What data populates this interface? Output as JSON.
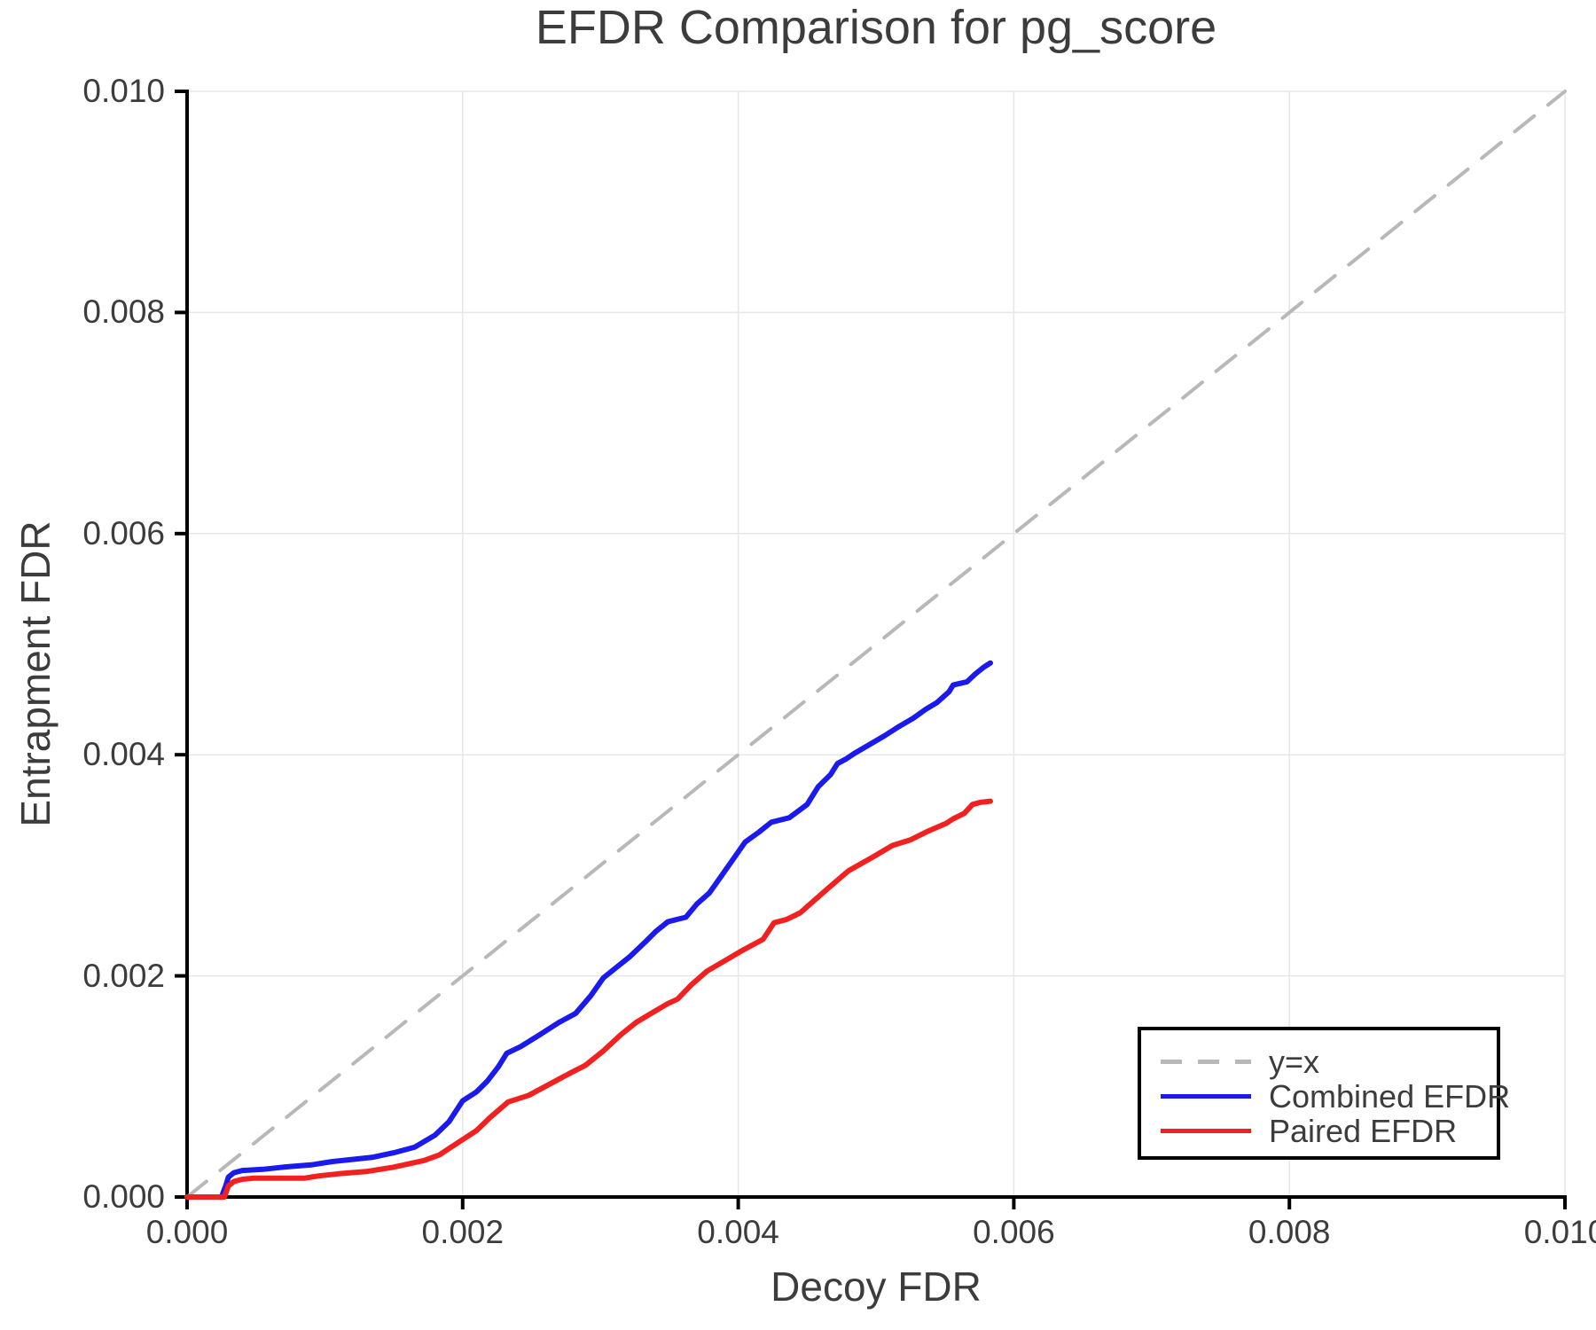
{
  "chart_data": {
    "type": "line",
    "title": "EFDR Comparison for pg_score",
    "xlabel": "Decoy FDR",
    "ylabel": "Entrapment FDR",
    "xlim": [
      0.0,
      0.01
    ],
    "ylim": [
      0.0,
      0.01
    ],
    "grid": true,
    "legend_position": "lower right",
    "x_ticks": {
      "values": [
        0.0,
        0.002,
        0.004,
        0.006,
        0.008,
        0.01
      ],
      "labels": [
        "0.000",
        "0.002",
        "0.004",
        "0.006",
        "0.008",
        "0.010"
      ]
    },
    "y_ticks": {
      "values": [
        0.0,
        0.002,
        0.004,
        0.006,
        0.008,
        0.01
      ],
      "labels": [
        "0.000",
        "0.002",
        "0.004",
        "0.006",
        "0.008",
        "0.010"
      ]
    },
    "colors": {
      "identity_line": "#b8b8b8",
      "combined_efdr": "#1a1aee",
      "paired_efdr": "#f32020",
      "grid": "#e7e7e7",
      "axis": "#000000",
      "text": "#3c3c3c"
    },
    "series": [
      {
        "name": "y=x",
        "style": "dashed",
        "color": "#b8b8b8",
        "points": [
          [
            0.0,
            0.0
          ],
          [
            0.01,
            0.01
          ]
        ]
      },
      {
        "name": "Combined EFDR",
        "style": "solid",
        "color": "#1a1aee",
        "points": [
          [
            0.0,
            0.0
          ],
          [
            0.00025,
            0.0
          ],
          [
            0.00028,
            0.0001
          ],
          [
            0.0003,
            0.00018
          ],
          [
            0.00034,
            0.00022
          ],
          [
            0.0004,
            0.00024
          ],
          [
            0.00055,
            0.00025
          ],
          [
            0.0007,
            0.00027
          ],
          [
            0.0009,
            0.00029
          ],
          [
            0.00105,
            0.00032
          ],
          [
            0.0012,
            0.00034
          ],
          [
            0.00135,
            0.00036
          ],
          [
            0.0015,
            0.0004
          ],
          [
            0.00165,
            0.00045
          ],
          [
            0.0018,
            0.00056
          ],
          [
            0.0019,
            0.00068
          ],
          [
            0.002,
            0.00087
          ],
          [
            0.0021,
            0.00095
          ],
          [
            0.00218,
            0.00105
          ],
          [
            0.00226,
            0.00118
          ],
          [
            0.00232,
            0.0013
          ],
          [
            0.00242,
            0.00136
          ],
          [
            0.00255,
            0.00146
          ],
          [
            0.0027,
            0.00158
          ],
          [
            0.00282,
            0.00166
          ],
          [
            0.00293,
            0.00182
          ],
          [
            0.00302,
            0.00198
          ],
          [
            0.0031,
            0.00206
          ],
          [
            0.00321,
            0.00217
          ],
          [
            0.00332,
            0.0023
          ],
          [
            0.0034,
            0.0024
          ],
          [
            0.00349,
            0.00249
          ],
          [
            0.00362,
            0.00253
          ],
          [
            0.0037,
            0.00265
          ],
          [
            0.00379,
            0.00275
          ],
          [
            0.00387,
            0.00289
          ],
          [
            0.00396,
            0.00305
          ],
          [
            0.00405,
            0.00321
          ],
          [
            0.00415,
            0.0033
          ],
          [
            0.00424,
            0.00339
          ],
          [
            0.00437,
            0.00343
          ],
          [
            0.0045,
            0.00355
          ],
          [
            0.00458,
            0.00371
          ],
          [
            0.00467,
            0.00382
          ],
          [
            0.00472,
            0.00392
          ],
          [
            0.00478,
            0.00396
          ],
          [
            0.00484,
            0.00401
          ],
          [
            0.00495,
            0.00409
          ],
          [
            0.00506,
            0.00417
          ],
          [
            0.00516,
            0.00425
          ],
          [
            0.00527,
            0.00433
          ],
          [
            0.00536,
            0.00441
          ],
          [
            0.00544,
            0.00447
          ],
          [
            0.00553,
            0.00457
          ],
          [
            0.00556,
            0.00463
          ],
          [
            0.00566,
            0.00466
          ],
          [
            0.00572,
            0.00473
          ],
          [
            0.00578,
            0.00479
          ],
          [
            0.00583,
            0.00483
          ]
        ]
      },
      {
        "name": "Paired EFDR",
        "style": "solid",
        "color": "#f32020",
        "points": [
          [
            0.0,
            0.0
          ],
          [
            0.00027,
            0.0
          ],
          [
            0.0003,
            0.0001
          ],
          [
            0.00034,
            0.00014
          ],
          [
            0.0004,
            0.00016
          ],
          [
            0.00048,
            0.00017
          ],
          [
            0.00085,
            0.00017
          ],
          [
            0.00095,
            0.00019
          ],
          [
            0.0011,
            0.00021
          ],
          [
            0.0013,
            0.00023
          ],
          [
            0.0015,
            0.00027
          ],
          [
            0.00172,
            0.00033
          ],
          [
            0.00183,
            0.00038
          ],
          [
            0.002,
            0.00052
          ],
          [
            0.0021,
            0.0006
          ],
          [
            0.0022,
            0.00072
          ],
          [
            0.00233,
            0.00086
          ],
          [
            0.00248,
            0.00092
          ],
          [
            0.00263,
            0.00102
          ],
          [
            0.00278,
            0.00112
          ],
          [
            0.00289,
            0.00119
          ],
          [
            0.00302,
            0.00132
          ],
          [
            0.00315,
            0.00147
          ],
          [
            0.00326,
            0.00158
          ],
          [
            0.00338,
            0.00167
          ],
          [
            0.00349,
            0.00175
          ],
          [
            0.00356,
            0.00179
          ],
          [
            0.00366,
            0.00192
          ],
          [
            0.00377,
            0.00204
          ],
          [
            0.00392,
            0.00215
          ],
          [
            0.00403,
            0.00223
          ],
          [
            0.00418,
            0.00233
          ],
          [
            0.00426,
            0.00248
          ],
          [
            0.00435,
            0.00251
          ],
          [
            0.00445,
            0.00257
          ],
          [
            0.00455,
            0.00268
          ],
          [
            0.00465,
            0.00279
          ],
          [
            0.0048,
            0.00295
          ],
          [
            0.00497,
            0.00307
          ],
          [
            0.00512,
            0.00318
          ],
          [
            0.00525,
            0.00323
          ],
          [
            0.00538,
            0.00331
          ],
          [
            0.00551,
            0.00338
          ],
          [
            0.00556,
            0.00342
          ],
          [
            0.00564,
            0.00347
          ],
          [
            0.0057,
            0.00355
          ],
          [
            0.00576,
            0.00357
          ],
          [
            0.00583,
            0.00358
          ]
        ]
      }
    ]
  }
}
